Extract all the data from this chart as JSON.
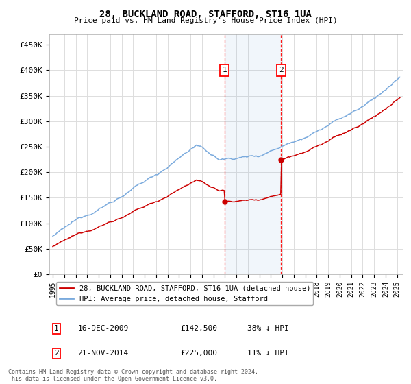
{
  "title": "28, BUCKLAND ROAD, STAFFORD, ST16 1UA",
  "subtitle": "Price paid vs. HM Land Registry's House Price Index (HPI)",
  "ylabel_ticks": [
    "£0",
    "£50K",
    "£100K",
    "£150K",
    "£200K",
    "£250K",
    "£300K",
    "£350K",
    "£400K",
    "£450K"
  ],
  "ytick_values": [
    0,
    50000,
    100000,
    150000,
    200000,
    250000,
    300000,
    350000,
    400000,
    450000
  ],
  "ylim": [
    0,
    470000
  ],
  "xlim_start": 1994.7,
  "xlim_end": 2025.5,
  "hpi_color": "#7aaadd",
  "price_color": "#cc0000",
  "sale1_x": 2009.96,
  "sale1_y": 142500,
  "sale2_x": 2014.9,
  "sale2_y": 225000,
  "legend_line1": "28, BUCKLAND ROAD, STAFFORD, ST16 1UA (detached house)",
  "legend_line2": "HPI: Average price, detached house, Stafford",
  "footer": "Contains HM Land Registry data © Crown copyright and database right 2024.\nThis data is licensed under the Open Government Licence v3.0.",
  "background_color": "#ffffff",
  "grid_color": "#dddddd"
}
